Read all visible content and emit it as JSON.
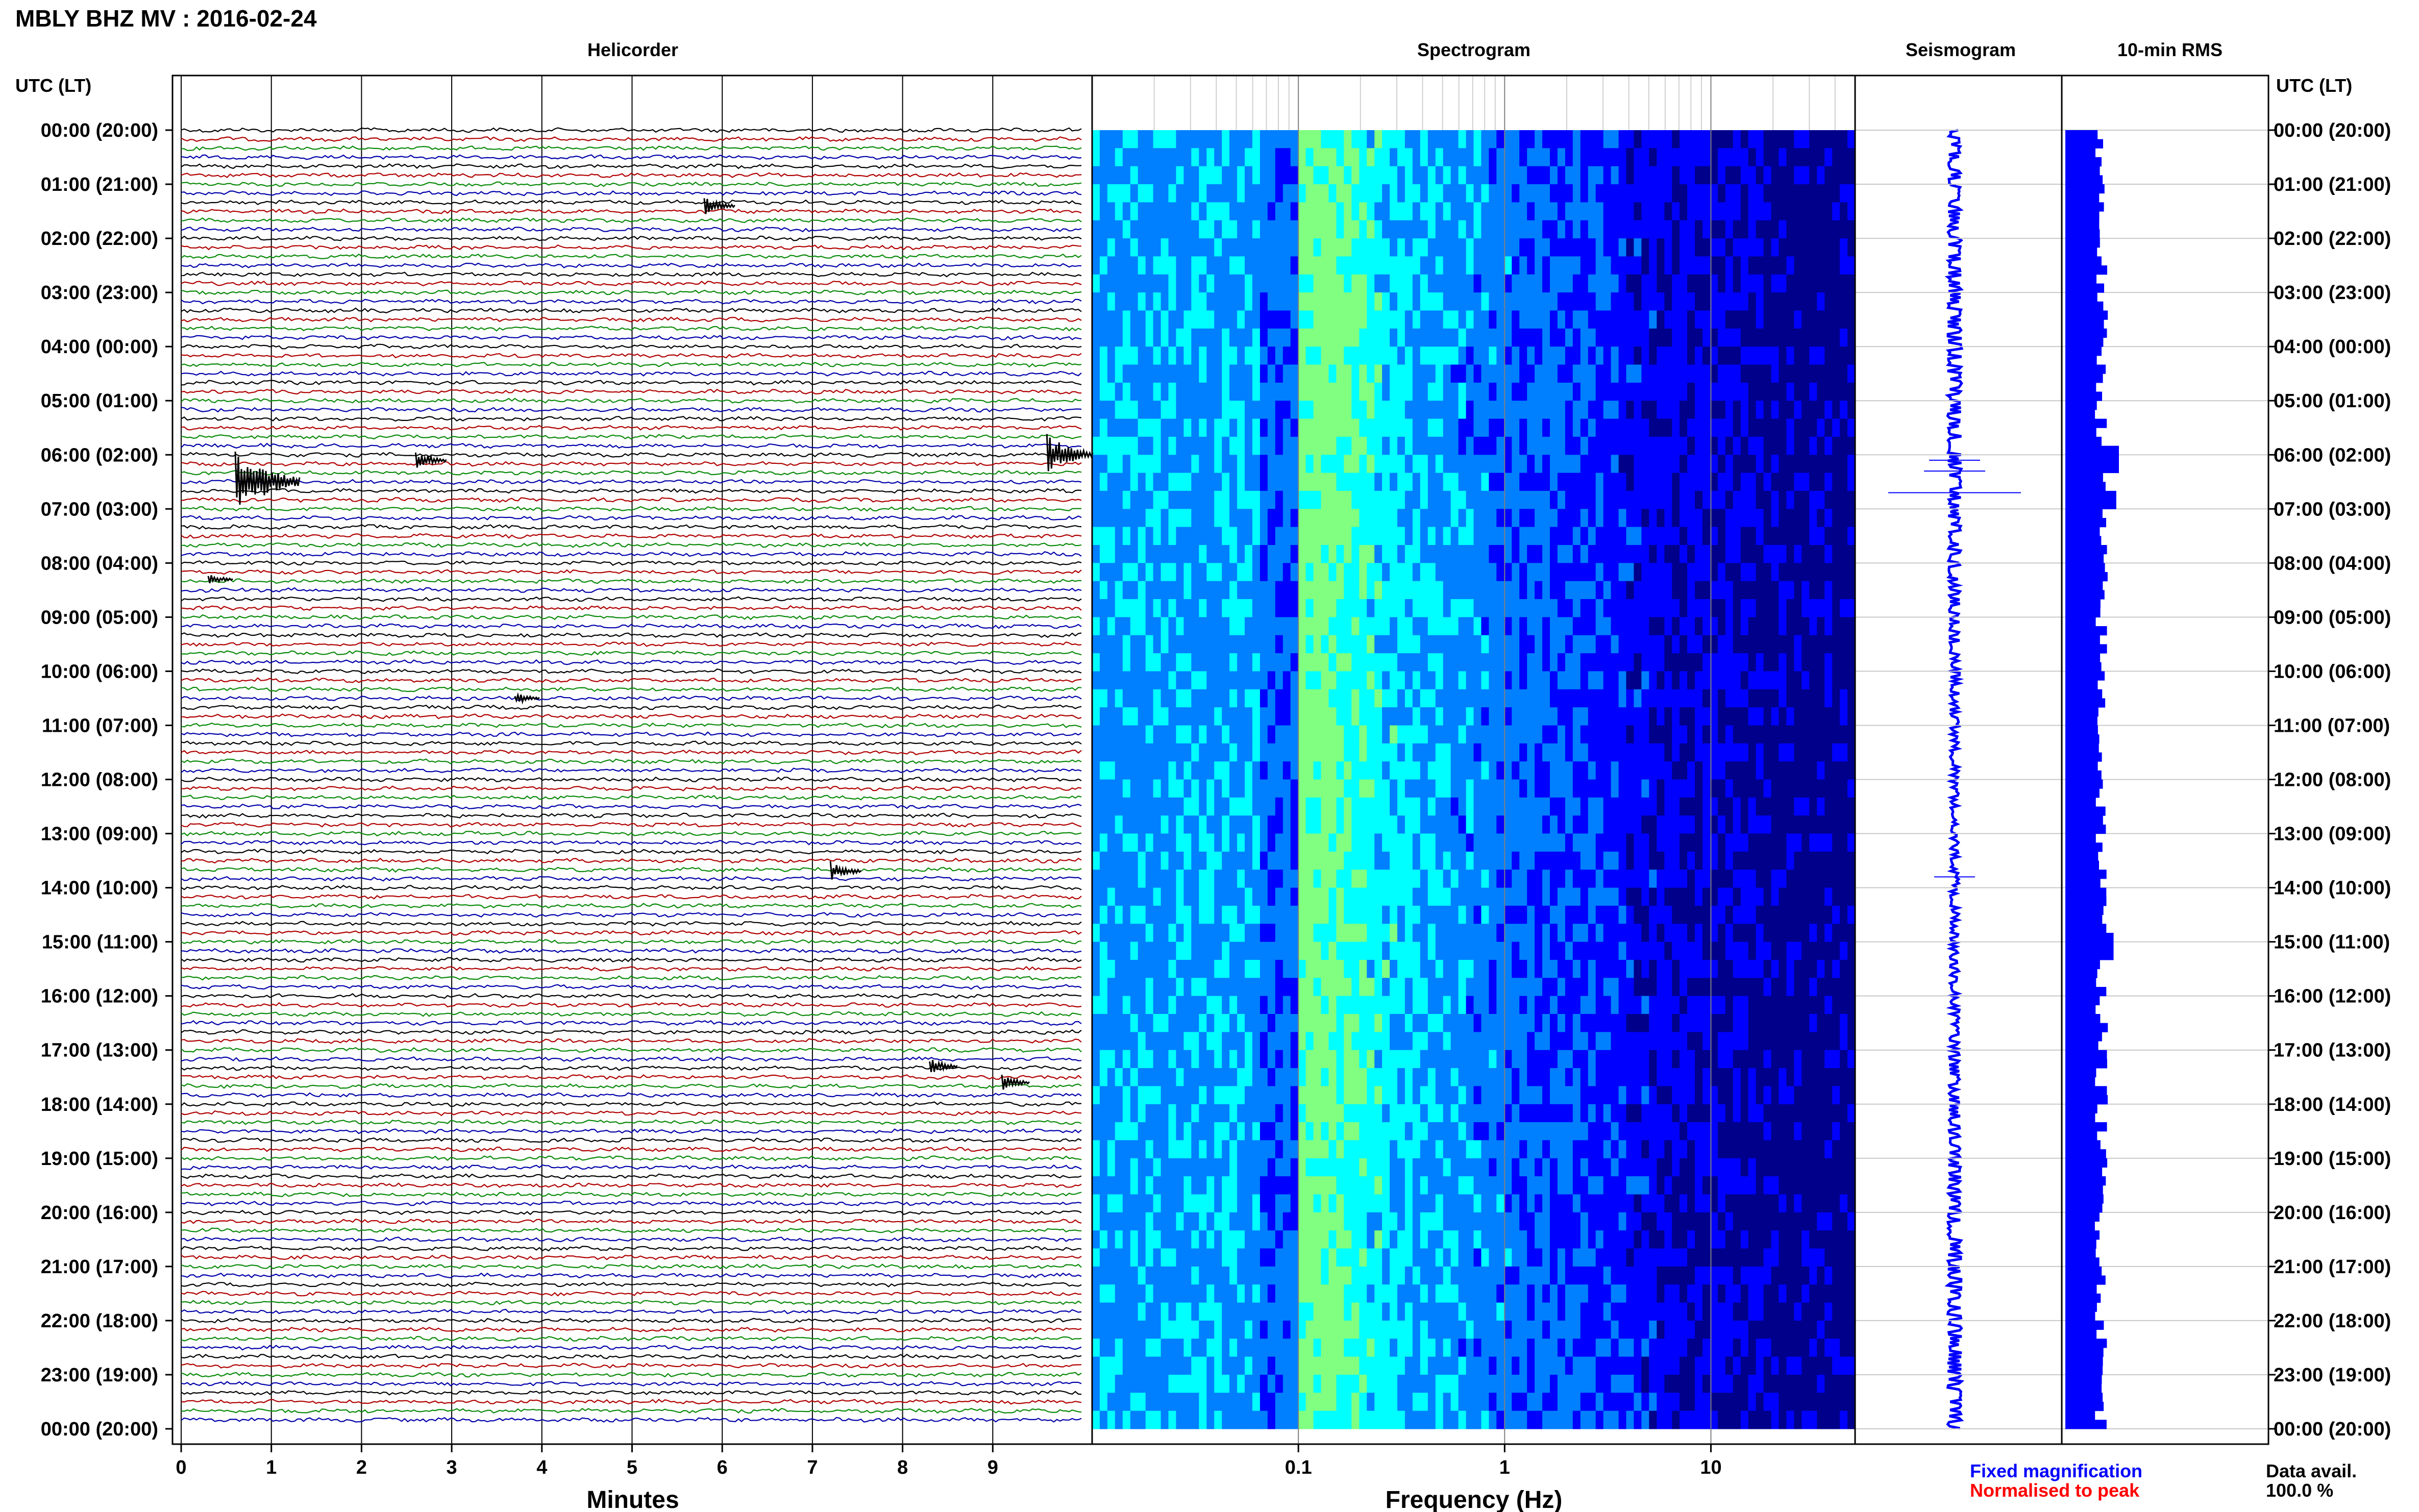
{
  "title": "MBLY BHZ MV : 2016-02-24",
  "panels": {
    "helicorder": "Helicorder",
    "spectrogram": "Spectrogram",
    "seismogram": "Seismogram",
    "rms": "10-min RMS"
  },
  "time_header": "UTC (LT)",
  "footer": {
    "fixed": "Fixed magnification",
    "normalised": "Normalised to peak",
    "data_avail_label": "Data avail.",
    "data_avail_value": "100.0 %"
  },
  "colors": {
    "trace_cycle": [
      "#000000",
      "#b00000",
      "#0a8a0a",
      "#0000aa"
    ],
    "fixed": "#0000ff",
    "normalised": "#ff0000",
    "rms": "#0000ff"
  },
  "chart_data": [
    {
      "type": "line",
      "title": "Helicorder",
      "xlabel": "Minutes",
      "x_ticks": [
        "0",
        "1",
        "2",
        "3",
        "4",
        "5",
        "6",
        "7",
        "8",
        "9"
      ],
      "xlim": [
        0,
        10
      ],
      "rows_per_hour": 6,
      "y_ticks": [
        "00:00 (20:00)",
        "01:00 (21:00)",
        "02:00 (22:00)",
        "03:00 (23:00)",
        "04:00 (00:00)",
        "05:00 (01:00)",
        "06:00 (02:00)",
        "07:00 (03:00)",
        "08:00 (04:00)",
        "09:00 (05:00)",
        "10:00 (06:00)",
        "11:00 (07:00)",
        "12:00 (08:00)",
        "13:00 (09:00)",
        "14:00 (10:00)",
        "15:00 (11:00)",
        "16:00 (12:00)",
        "17:00 (13:00)",
        "18:00 (14:00)",
        "19:00 (15:00)",
        "20:00 (16:00)",
        "21:00 (17:00)",
        "22:00 (18:00)",
        "23:00 (19:00)",
        "00:00 (20:00)"
      ],
      "events": [
        {
          "hour": 6,
          "minute": 9.6,
          "amp": 1.0
        },
        {
          "hour": 6.5,
          "minute": 0.6,
          "amp": 1.6
        },
        {
          "hour": 6.1,
          "minute": 2.6,
          "amp": 0.5
        },
        {
          "hour": 1.4,
          "minute": 5.8,
          "amp": 0.5
        },
        {
          "hour": 10.5,
          "minute": 3.7,
          "amp": 0.3
        },
        {
          "hour": 13.7,
          "minute": 7.2,
          "amp": 0.5
        },
        {
          "hour": 17.3,
          "minute": 8.3,
          "amp": 0.4
        },
        {
          "hour": 17.6,
          "minute": 9.1,
          "amp": 0.4
        },
        {
          "hour": 8.3,
          "minute": 0.3,
          "amp": 0.3
        }
      ]
    },
    {
      "type": "heatmap",
      "title": "Spectrogram",
      "xlabel": "Frequency (Hz)",
      "x_scale": "log",
      "xlim": [
        0.01,
        50
      ],
      "x_tick_labels": [
        "0.1",
        "1",
        "10"
      ],
      "x_ticks": [
        0.1,
        1,
        10
      ],
      "colormap": [
        "#00008b",
        "#0000ff",
        "#0080ff",
        "#00ffff",
        "#80ff80",
        "#ffff00"
      ]
    },
    {
      "type": "line",
      "title": "Seismogram",
      "mean_trace": true
    },
    {
      "type": "bar",
      "title": "10-min RMS",
      "rows": 144,
      "relative_level_range": [
        0.55,
        1.0
      ],
      "peaks": [
        {
          "hour": 6.0,
          "value": 1.0
        },
        {
          "hour": 6.7,
          "value": 0.95
        },
        {
          "hour": 15.0,
          "value": 0.9
        }
      ]
    }
  ]
}
